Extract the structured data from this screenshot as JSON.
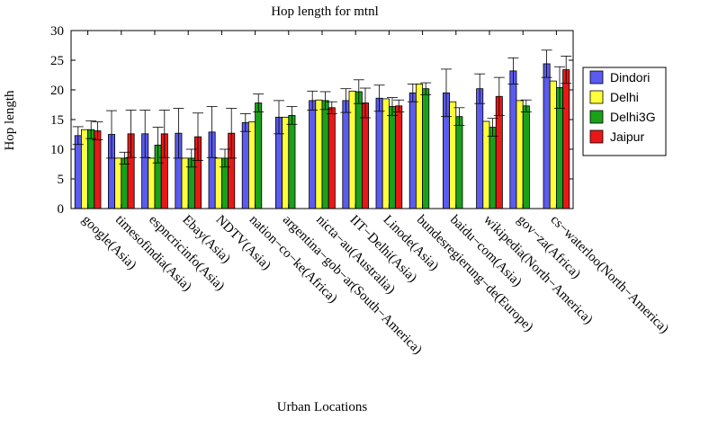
{
  "chart_data": {
    "type": "bar",
    "title": "Hop length for mtnl",
    "xlabel": "Urban Locations",
    "ylabel": "Hop length",
    "ylim": [
      0,
      30
    ],
    "yticks": [
      0,
      5,
      10,
      15,
      20,
      25,
      30
    ],
    "grid": false,
    "legend_position": "right",
    "categories": [
      "google(Asia)",
      "timesofindia(Asia)",
      "espncricinfo(Asia)",
      "Ebay(Asia)",
      "NDTV(Asia)",
      "nation−co−ke(Africa)",
      "argentina−gob−ar(South−America)",
      "nicta−au(Australia)",
      "IIT−Delhi(Asia)",
      "Linode(Asia)",
      "bundesregierung−de(Europe)",
      "baidu−com(Asia)",
      "wikipedia(North−America)",
      "gov−za(Africa)",
      "cs−waterloo(North−America)"
    ],
    "series": [
      {
        "name": "Dindori",
        "color": "#5b5bf0",
        "values": [
          12.3,
          12.5,
          12.6,
          12.7,
          12.9,
          14.5,
          15.4,
          18.2,
          18.2,
          18.6,
          19.5,
          19.5,
          20.2,
          23.2,
          24.4
        ],
        "err": [
          1.5,
          4.0,
          4.0,
          4.2,
          4.3,
          1.5,
          2.8,
          1.6,
          2.0,
          2.2,
          1.5,
          4.0,
          2.5,
          2.2,
          2.3
        ]
      },
      {
        "name": "Delhi",
        "color": "#ffff3a",
        "values": [
          13.3,
          8.5,
          8.5,
          8.5,
          8.5,
          14.6,
          15.4,
          18.3,
          19.8,
          18.5,
          21.0,
          18.0,
          14.7,
          18.2,
          21.5
        ]
      },
      {
        "name": "Delhi3G",
        "color": "#1aa01a",
        "values": [
          13.3,
          8.5,
          10.7,
          8.5,
          8.5,
          17.8,
          15.7,
          18.2,
          19.7,
          17.2,
          20.2,
          15.5,
          13.7,
          17.3,
          20.4
        ],
        "err": [
          1.5,
          1.0,
          3.0,
          1.5,
          1.5,
          1.5,
          1.5,
          1.5,
          2.0,
          1.5,
          1.0,
          1.5,
          1.5,
          1.0,
          3.5
        ]
      },
      {
        "name": "Jaipur",
        "color": "#e81818",
        "values": [
          13.1,
          12.6,
          12.6,
          12.1,
          12.7,
          0,
          0,
          17.0,
          17.8,
          17.3,
          0,
          0,
          18.9,
          0,
          23.4
        ],
        "err": [
          1.5,
          4.0,
          4.0,
          4.0,
          4.2,
          0,
          0,
          1.0,
          2.5,
          1.0,
          0,
          0,
          3.2,
          0,
          2.3
        ]
      }
    ]
  }
}
